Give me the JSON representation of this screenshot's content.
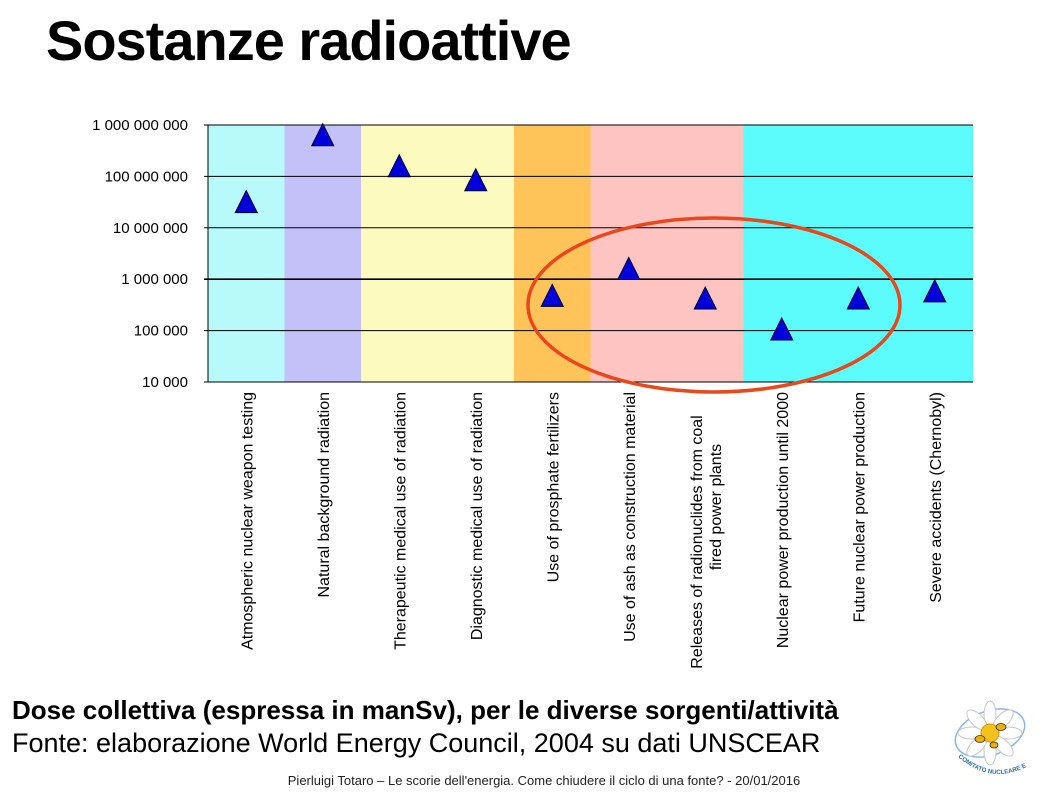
{
  "slide": {
    "title": "Sostanze radioattive",
    "caption_bold": "Dose collettiva (espressa in manSv), per le diverse sorgenti/attività",
    "caption_source": "Fonte: elaborazione World Energy Council, 2004 su dati UNSCEAR",
    "footer": "Pierluigi Totaro – Le scorie dell'energia. Come chiudere il ciclo di una fonte? - 20/01/2016",
    "logo_text": "COMITATO NUCLEARE E RAGIONE"
  },
  "chart_data": {
    "type": "scatter",
    "y_scale": "log",
    "ylim": [
      10000,
      1000000000
    ],
    "y_ticks": [
      {
        "value": 10000,
        "label": "10 000"
      },
      {
        "value": 100000,
        "label": "100 000"
      },
      {
        "value": 1000000,
        "label": "1 000 000"
      },
      {
        "value": 10000000,
        "label": "10 000 000"
      },
      {
        "value": 100000000,
        "label": "100 000 000"
      },
      {
        "value": 1000000000,
        "label": "1 000 000 000"
      }
    ],
    "grid": true,
    "marker": "triangle",
    "marker_color": "#0000dd",
    "highlight_ellipse_color": "#e8481c",
    "categories": [
      {
        "lines": [
          "Atmospheric nuclear weapon testing"
        ],
        "value": 30000000
      },
      {
        "lines": [
          "Natural  background radiation"
        ],
        "value": 600000000
      },
      {
        "lines": [
          "Therapeutic medical use of radiation"
        ],
        "value": 150000000
      },
      {
        "lines": [
          "Diagnostic medical use of radiation"
        ],
        "value": 80000000
      },
      {
        "lines": [
          "Use of prosphate fertilizers"
        ],
        "value": 450000
      },
      {
        "lines": [
          "Use of ash as construction material"
        ],
        "value": 1500000
      },
      {
        "lines": [
          "Releases of radionuclides from coal",
          "fired power plants"
        ],
        "value": 400000
      },
      {
        "lines": [
          "Nuclear power production until 2000"
        ],
        "value": 100000
      },
      {
        "lines": [
          "Future nuclear power production"
        ],
        "value": 400000
      },
      {
        "lines": [
          "Severe accidents (Chernobyl)"
        ],
        "value": 550000
      }
    ],
    "bands": [
      {
        "span": [
          0,
          1
        ],
        "color": "#b8fafa"
      },
      {
        "span": [
          1,
          2
        ],
        "color": "#c4c0f8"
      },
      {
        "span": [
          2,
          4
        ],
        "color": "#fdfac0"
      },
      {
        "span": [
          4,
          5
        ],
        "color": "#fec45a"
      },
      {
        "span": [
          5,
          7
        ],
        "color": "#fec4c2"
      },
      {
        "span": [
          7,
          10
        ],
        "color": "#5cfcfc"
      }
    ]
  }
}
